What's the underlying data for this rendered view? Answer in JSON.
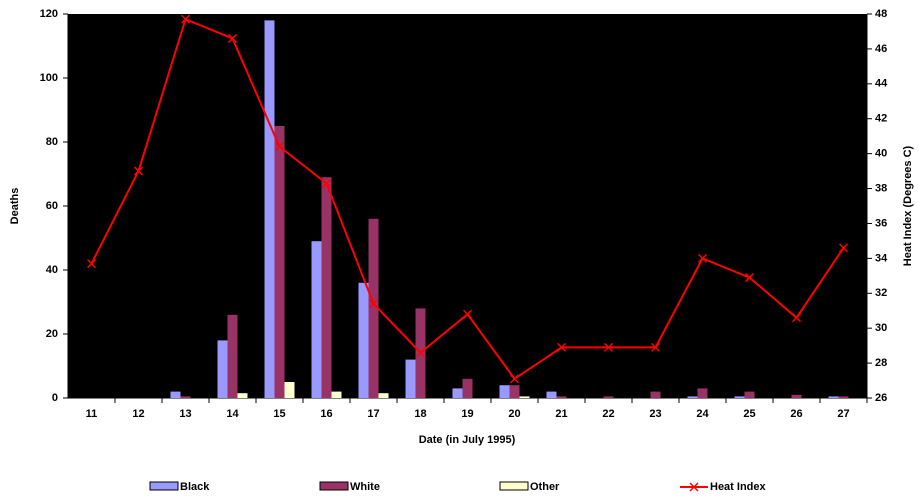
{
  "chart_data": {
    "type": "bar_line",
    "x_label": "Date  (in July 1995)",
    "y_label": "Deaths",
    "y2_label": "Heat Index (Degrees C)",
    "categories": [
      "11",
      "12",
      "13",
      "14",
      "15",
      "16",
      "17",
      "18",
      "19",
      "20",
      "21",
      "22",
      "23",
      "24",
      "25",
      "26",
      "27"
    ],
    "series": [
      {
        "name": "Black",
        "type": "bar",
        "color": "#9999ff",
        "values": [
          0,
          0,
          2,
          18,
          118,
          49,
          36,
          12,
          3,
          4,
          2,
          0,
          0,
          0.5,
          0.5,
          0,
          0.5
        ]
      },
      {
        "name": "White",
        "type": "bar",
        "color": "#993366",
        "values": [
          0,
          0,
          0.5,
          26,
          85,
          69,
          56,
          28,
          6,
          4,
          0.5,
          0.5,
          2,
          3,
          2,
          1,
          0.5
        ]
      },
      {
        "name": "Other",
        "type": "bar",
        "color": "#ffffcc",
        "values": [
          0,
          0,
          0,
          1.5,
          5,
          2,
          1.5,
          0,
          0,
          0.5,
          0,
          0,
          0,
          0,
          0,
          0,
          0
        ]
      },
      {
        "name": "Heat Index",
        "type": "line",
        "axis": "y2",
        "color": "#ff0000",
        "values": [
          33.7,
          39.0,
          47.7,
          46.6,
          40.4,
          38.3,
          31.4,
          28.6,
          30.8,
          27.1,
          28.9,
          28.9,
          28.9,
          34.0,
          32.9,
          30.6,
          34.6
        ]
      }
    ],
    "ylim": [
      0,
      120
    ],
    "yticks": [
      0,
      20,
      40,
      60,
      80,
      100,
      120
    ],
    "y2lim": [
      26,
      48
    ],
    "y2ticks": [
      26,
      28,
      30,
      32,
      34,
      36,
      38,
      40,
      42,
      44,
      46,
      48
    ],
    "plot_background": "#000000",
    "grid": false,
    "legend": "bottom"
  }
}
